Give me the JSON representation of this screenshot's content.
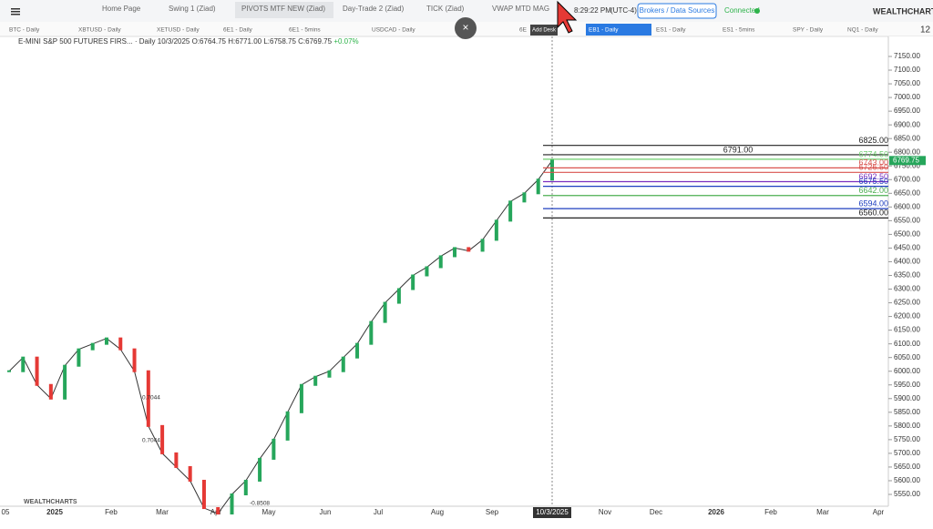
{
  "top_bar": {
    "tabs": [
      "Home Page",
      "Swing 1 (Ziad)",
      "PIVOTS MTF NEW (Ziad)",
      "Day-Trade 2 (Ziad)",
      "TICK (Ziad)",
      "VWAP MTD MAG"
    ],
    "time": "8:29:22 PM",
    "timezone": "(UTC-4)",
    "brokers": "Brokers / Data Sources",
    "status": "Connected",
    "brand": "WEALTHCHARTS",
    "tooltip": "Add Desk"
  },
  "symbol_tabs": [
    "BTC - Daily",
    "XBTUSD - Daily",
    "XETUSD - Daily",
    "6E1 - Daily",
    "6E1 - 5mins",
    "USDCAD - Daily",
    "6E",
    "EB1 - Daily",
    "ES1 - Daily",
    "ES1 - 5mins",
    "SPY - Daily",
    "NQ1 - Daily"
  ],
  "chart": {
    "header": "E-MINI S&P 500 FUTURES FIRS... · Daily",
    "date": "10/3/2025",
    "ohlc": "O:6764.75 H:6771.00 L:6758.75 C:6769.75",
    "change": "+0.07%",
    "last_price": {
      "value": 6769.75,
      "label": "6769.75"
    },
    "zoom": "12",
    "price_ticks": [
      {
        "value": 7150,
        "label": "7150.00"
      },
      {
        "value": 7100,
        "label": "7100.00"
      },
      {
        "value": 7050,
        "label": "7050.00"
      },
      {
        "value": 7000,
        "label": "7000.00"
      },
      {
        "value": 6950,
        "label": "6950.00"
      },
      {
        "value": 6900,
        "label": "6900.00"
      },
      {
        "value": 6850,
        "label": "6850.00"
      },
      {
        "value": 6800,
        "label": "6800.00"
      },
      {
        "value": 6750,
        "label": "6750.00"
      },
      {
        "value": 6700,
        "label": "6700.00"
      },
      {
        "value": 6650,
        "label": "6650.00"
      },
      {
        "value": 6600,
        "label": "6600.00"
      },
      {
        "value": 6550,
        "label": "6550.00"
      },
      {
        "value": 6500,
        "label": "6500.00"
      },
      {
        "value": 6450,
        "label": "6450.00"
      },
      {
        "value": 6400,
        "label": "6400.00"
      },
      {
        "value": 6350,
        "label": "6350.00"
      },
      {
        "value": 6300,
        "label": "6300.00"
      },
      {
        "value": 6250,
        "label": "6250.00"
      },
      {
        "value": 6200,
        "label": "6200.00"
      },
      {
        "value": 6150,
        "label": "6150.00"
      },
      {
        "value": 6100,
        "label": "6100.00"
      },
      {
        "value": 6050,
        "label": "6050.00"
      },
      {
        "value": 6000,
        "label": "6000.00"
      },
      {
        "value": 5950,
        "label": "5950.00"
      },
      {
        "value": 5900,
        "label": "5900.00"
      },
      {
        "value": 5850,
        "label": "5850.00"
      },
      {
        "value": 5800,
        "label": "5800.00"
      },
      {
        "value": 5750,
        "label": "5750.00"
      },
      {
        "value": 5700,
        "label": "5700.00"
      },
      {
        "value": 5650,
        "label": "5650.00"
      },
      {
        "value": 5600,
        "label": "5600.00"
      },
      {
        "value": 5550,
        "label": "5550.00"
      }
    ],
    "date_labels": [
      "05",
      "2025",
      "Feb",
      "Mar",
      "Apr",
      "May",
      "Jun",
      "Jul",
      "Aug",
      "Sep",
      "10/3/2025",
      "Nov",
      "Dec",
      "2026",
      "Feb",
      "Mar",
      "Apr"
    ],
    "levels": [
      {
        "value": 6825,
        "label": "6825.00",
        "color": "#222222"
      },
      {
        "value": 6791,
        "label": "6791.00",
        "color": "#222222"
      },
      {
        "value": 6774.5,
        "label": "6774.50",
        "color": "#6fcf6f"
      },
      {
        "value": 6743,
        "label": "6743.00",
        "color": "#d9534f"
      },
      {
        "value": 6726.5,
        "label": "6726.50",
        "color": "#d9534f"
      },
      {
        "value": 6692.5,
        "label": "6692.50",
        "color": "#7b2fbf"
      },
      {
        "value": 6675.5,
        "label": "6675.50",
        "color": "#1f3fbf"
      },
      {
        "value": 6642,
        "label": "6642.00",
        "color": "#4caf50"
      },
      {
        "value": 6594,
        "label": "6594.00",
        "color": "#1f3fbf"
      },
      {
        "value": 6560,
        "label": "6560.00",
        "color": "#222222"
      }
    ],
    "closes": [
      6000,
      6050,
      5950,
      5900,
      6020,
      6080,
      6100,
      6120,
      6080,
      6000,
      5800,
      5700,
      5650,
      5600,
      5500,
      5480,
      5550,
      5600,
      5680,
      5750,
      5850,
      5950,
      5980,
      6000,
      6050,
      6100,
      6180,
      6250,
      6300,
      6350,
      6380,
      6420,
      6450,
      6440,
      6480,
      6550,
      6620,
      6650,
      6700,
      6769.75
    ],
    "annotations": [
      "0.7044",
      "0.7044",
      "-0.8508"
    ],
    "watermark": "WEALTHCHARTS"
  }
}
